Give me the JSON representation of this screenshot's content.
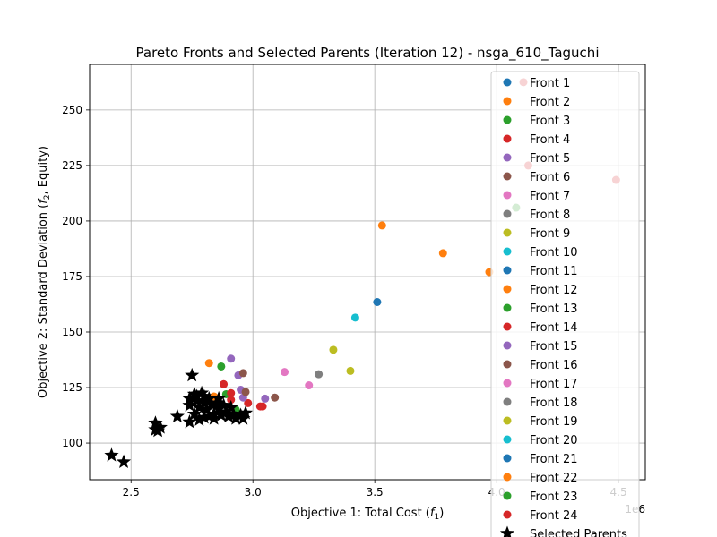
{
  "chart_data": {
    "type": "scatter",
    "title": "Pareto Fronts and Selected Parents (Iteration 12) - nsga_610_Taguchi",
    "xlabel": "Objective 1: Total Cost (f1)",
    "ylabel": "Objective 2: Standard Deviation (f2, Equity)",
    "x_offset_label": "1e6",
    "x_ticks": [
      "2.5",
      "3.0",
      "3.5",
      "4.0",
      "4.5"
    ],
    "x_tick_values": [
      2.5,
      3.0,
      3.5,
      4.0,
      4.5
    ],
    "y_ticks": [
      "100",
      "125",
      "150",
      "175",
      "200",
      "225",
      "250"
    ],
    "y_tick_values": [
      100,
      125,
      150,
      175,
      200,
      225,
      250
    ],
    "xlim": [
      2.33,
      4.61
    ],
    "ylim": [
      83.5,
      270.5
    ],
    "grid": true,
    "legend_position": "upper right",
    "series": [
      {
        "name": "Front 1",
        "color": "#1f77b4",
        "points": [
          [
            3.51,
            163.5
          ]
        ]
      },
      {
        "name": "Front 2",
        "color": "#ff7f0e",
        "points": [
          [
            3.53,
            198
          ],
          [
            3.78,
            185.5
          ],
          [
            2.82,
            136
          ],
          [
            2.84,
            121
          ]
        ]
      },
      {
        "name": "Front 3",
        "color": "#2ca02c",
        "points": [
          [
            2.87,
            134.5
          ],
          [
            2.89,
            122
          ]
        ]
      },
      {
        "name": "Front 4",
        "color": "#d62728",
        "points": [
          [
            2.88,
            126.5
          ],
          [
            2.91,
            122.5
          ],
          [
            3.03,
            116.5
          ],
          [
            3.04,
            116.5
          ],
          [
            2.98,
            118
          ]
        ]
      },
      {
        "name": "Front 5",
        "color": "#9467bd",
        "points": [
          [
            2.91,
            138
          ],
          [
            2.94,
            130.5
          ],
          [
            3.05,
            120
          ],
          [
            2.95,
            124
          ],
          [
            2.96,
            120.5
          ]
        ]
      },
      {
        "name": "Front 6",
        "color": "#8c564b",
        "points": [
          [
            2.96,
            131.5
          ],
          [
            3.09,
            120.5
          ],
          [
            2.97,
            123
          ]
        ]
      },
      {
        "name": "Front 7",
        "color": "#e377c2",
        "points": [
          [
            3.13,
            132
          ],
          [
            3.23,
            126
          ]
        ]
      },
      {
        "name": "Front 8",
        "color": "#7f7f7f",
        "points": [
          [
            3.27,
            131
          ]
        ]
      },
      {
        "name": "Front 9",
        "color": "#bcbd22",
        "points": [
          [
            3.33,
            142
          ],
          [
            3.4,
            132.5
          ]
        ]
      },
      {
        "name": "Front 10",
        "color": "#17becf",
        "points": [
          [
            3.42,
            156.5
          ]
        ]
      },
      {
        "name": "Front 11",
        "color": "#1f77b4",
        "points": []
      },
      {
        "name": "Front 12",
        "color": "#ff7f0e",
        "points": [
          [
            3.97,
            177
          ]
        ]
      },
      {
        "name": "Front 13",
        "color": "#2ca02c",
        "points": [
          [
            4.08,
            206
          ]
        ]
      },
      {
        "name": "Front 14",
        "color": "#d62728",
        "points": [
          [
            4.11,
            262.5
          ],
          [
            4.13,
            225
          ],
          [
            4.49,
            218.5
          ]
        ]
      },
      {
        "name": "Front 15",
        "color": "#9467bd",
        "points": []
      },
      {
        "name": "Front 16",
        "color": "#8c564b",
        "points": []
      },
      {
        "name": "Front 17",
        "color": "#e377c2",
        "points": []
      },
      {
        "name": "Front 18",
        "color": "#7f7f7f",
        "points": []
      },
      {
        "name": "Front 19",
        "color": "#bcbd22",
        "points": []
      },
      {
        "name": "Front 20",
        "color": "#17becf",
        "points": []
      },
      {
        "name": "Front 21",
        "color": "#1f77b4",
        "points": []
      },
      {
        "name": "Front 22",
        "color": "#ff7f0e",
        "points": []
      },
      {
        "name": "Front 23",
        "color": "#2ca02c",
        "points": [
          [
            2.93,
            115
          ]
        ]
      },
      {
        "name": "Front 24",
        "color": "#d62728",
        "points": [
          [
            2.91,
            119.5
          ]
        ]
      }
    ],
    "selected_parents": {
      "name": "Selected Parents",
      "color": "#000000",
      "points": [
        [
          2.42,
          94.5
        ],
        [
          2.47,
          91.5
        ],
        [
          2.6,
          109
        ],
        [
          2.6,
          106
        ],
        [
          2.62,
          107
        ],
        [
          2.61,
          105.5
        ],
        [
          2.69,
          112
        ],
        [
          2.74,
          109.5
        ],
        [
          2.75,
          130.5
        ],
        [
          2.74,
          120
        ],
        [
          2.74,
          117
        ],
        [
          2.76,
          122
        ],
        [
          2.77,
          119
        ],
        [
          2.78,
          116
        ],
        [
          2.79,
          122.5
        ],
        [
          2.8,
          121
        ],
        [
          2.8,
          118
        ],
        [
          2.81,
          115
        ],
        [
          2.82,
          112
        ],
        [
          2.82,
          120
        ],
        [
          2.83,
          117.5
        ],
        [
          2.84,
          113
        ],
        [
          2.85,
          118
        ],
        [
          2.86,
          115.5
        ],
        [
          2.87,
          112.5
        ],
        [
          2.88,
          117
        ],
        [
          2.89,
          114
        ],
        [
          2.9,
          112
        ],
        [
          2.91,
          116
        ],
        [
          2.92,
          113
        ],
        [
          2.93,
          111
        ],
        [
          2.95,
          112.5
        ],
        [
          2.96,
          111
        ],
        [
          2.97,
          113.5
        ],
        [
          2.76,
          113
        ],
        [
          2.78,
          110.5
        ],
        [
          2.8,
          111.5
        ],
        [
          2.84,
          111
        ],
        [
          2.86,
          120
        ],
        [
          2.77,
          121
        ]
      ]
    }
  }
}
